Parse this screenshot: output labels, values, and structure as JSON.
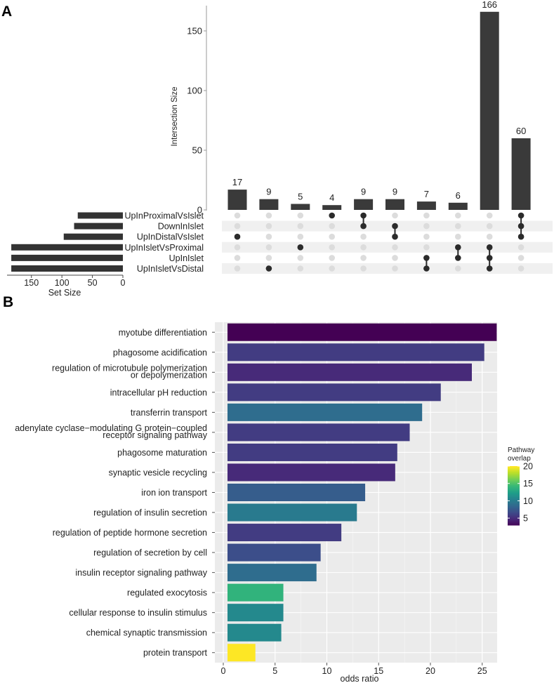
{
  "panel_a_label": "A",
  "panel_b_label": "B",
  "chart_data": [
    {
      "type": "bar",
      "subtype": "upset",
      "title": "",
      "ylabel": "Intersection Size",
      "ylim": [
        0,
        170
      ],
      "yticks": [
        0,
        50,
        100,
        150
      ],
      "sets": [
        "UpInProximalVsIslet",
        "DownInIslet",
        "UpInDistalVsIslet",
        "UpInIsletVsProximal",
        "UpInIslet",
        "UpInIsletVsDistal"
      ],
      "set_sizes": [
        74,
        80,
        97,
        183,
        183,
        183
      ],
      "set_size_label": "Set Size",
      "set_size_ticks": [
        150,
        100,
        50,
        0
      ],
      "set_size_lim": [
        0,
        190
      ],
      "intersections": [
        {
          "size": 17,
          "sets": [
            "UpInDistalVsIslet"
          ]
        },
        {
          "size": 9,
          "sets": [
            "UpInIsletVsDistal"
          ]
        },
        {
          "size": 5,
          "sets": [
            "UpInIsletVsProximal"
          ]
        },
        {
          "size": 4,
          "sets": [
            "UpInProximalVsIslet"
          ]
        },
        {
          "size": 9,
          "sets": [
            "UpInProximalVsIslet",
            "DownInIslet"
          ]
        },
        {
          "size": 9,
          "sets": [
            "DownInIslet",
            "UpInDistalVsIslet"
          ]
        },
        {
          "size": 7,
          "sets": [
            "UpInIslet",
            "UpInIsletVsDistal"
          ]
        },
        {
          "size": 6,
          "sets": [
            "UpInIsletVsProximal",
            "UpInIslet"
          ]
        },
        {
          "size": 166,
          "sets": [
            "UpInIsletVsProximal",
            "UpInIslet",
            "UpInIsletVsDistal"
          ]
        },
        {
          "size": 60,
          "sets": [
            "UpInProximalVsIslet",
            "DownInIslet",
            "UpInDistalVsIslet"
          ]
        }
      ]
    },
    {
      "type": "bar",
      "orientation": "horizontal",
      "title": "",
      "xlabel": "odds ratio",
      "ylabel": "",
      "xlim": [
        -0.5,
        26.4
      ],
      "xticks": [
        0,
        5,
        10,
        15,
        20,
        25
      ],
      "categories": [
        "myotube differentiation",
        "phagosome acidification",
        "regulation of microtubule polymerization or depolymerization",
        "intracellular pH reduction",
        "transferrin transport",
        "adenylate cyclase−modulating G protein−coupled receptor signaling pathway",
        "phagosome maturation",
        "synaptic vesicle recycling",
        "iron ion transport",
        "regulation of insulin secretion",
        "regulation of peptide hormone secretion",
        "regulation of secretion by cell",
        "insulin receptor signaling pathway",
        "regulated exocytosis",
        "cellular response to insulin stimulus",
        "chemical synaptic transmission",
        "protein transport"
      ],
      "category_lines": [
        [
          "myotube differentiation"
        ],
        [
          "phagosome acidification"
        ],
        [
          "regulation of microtubule polymerization",
          "or depolymerization"
        ],
        [
          "intracellular pH reduction"
        ],
        [
          "transferrin transport"
        ],
        [
          "adenylate cyclase−modulating G protein−coupled",
          "receptor signaling pathway"
        ],
        [
          "phagosome maturation"
        ],
        [
          "synaptic vesicle recycling"
        ],
        [
          "iron ion transport"
        ],
        [
          "regulation of insulin secretion"
        ],
        [
          "regulation of peptide hormone secretion"
        ],
        [
          "regulation of secretion by cell"
        ],
        [
          "insulin receptor signaling pathway"
        ],
        [
          "regulated exocytosis"
        ],
        [
          "cellular response to insulin stimulus"
        ],
        [
          "chemical synaptic transmission"
        ],
        [
          "protein transport"
        ]
      ],
      "values": [
        26.4,
        25.2,
        24.0,
        21.0,
        19.2,
        18.0,
        16.8,
        16.6,
        13.7,
        12.9,
        11.4,
        9.4,
        9.0,
        5.8,
        5.8,
        5.6,
        3.1
      ],
      "pathway_overlap": [
        3,
        6,
        5,
        6,
        9,
        6,
        6,
        5,
        8,
        10,
        6,
        7,
        9,
        14,
        11,
        11,
        20
      ],
      "legend": {
        "title": [
          "Pathway",
          "overlap"
        ],
        "ticks": [
          5,
          10,
          15,
          20
        ],
        "range": [
          3,
          20
        ],
        "position": "right"
      },
      "colors": {
        "panel_bg": "#ebebeb",
        "grid": "#ffffff"
      }
    }
  ]
}
